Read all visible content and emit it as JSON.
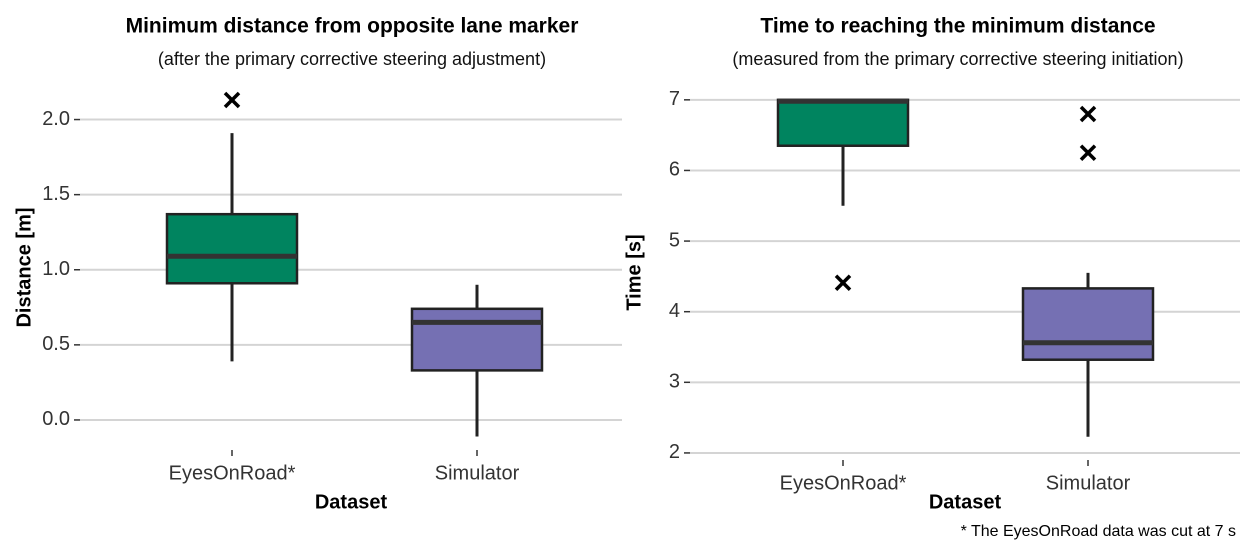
{
  "chart_data": [
    {
      "type": "box",
      "title": "Minimum distance from opposite lane marker",
      "subtitle": "(after the primary corrective steering adjustment)",
      "xlabel": "Dataset",
      "ylabel": "Distance [m]",
      "categories": [
        "EyesOnRoad*",
        "Simulator"
      ],
      "boxes": [
        {
          "color": "#00845f",
          "whisker_low": 0.39,
          "q1": 0.91,
          "median": 1.09,
          "q3": 1.37,
          "whisker_high": 1.91,
          "outliers": [
            2.13
          ]
        },
        {
          "color": "#7570b3",
          "whisker_low": -0.11,
          "q1": 0.33,
          "median": 0.65,
          "q3": 0.74,
          "whisker_high": 0.9,
          "outliers": []
        }
      ],
      "ylim": [
        -0.2,
        2.23
      ],
      "yticks": [
        {
          "value": 0,
          "label": "0.0"
        },
        {
          "value": 0.5,
          "label": "0.5"
        },
        {
          "value": 1,
          "label": "1.0"
        },
        {
          "value": 1.5,
          "label": "1.5"
        },
        {
          "value": 2,
          "label": "2.0"
        }
      ],
      "grid": true
    },
    {
      "type": "box",
      "title": "Time to reaching the minimum distance",
      "subtitle": "(measured from the primary corrective steering initiation)",
      "xlabel": "Dataset",
      "ylabel": "Time [s]",
      "categories": [
        "EyesOnRoad*",
        "Simulator"
      ],
      "boxes": [
        {
          "color": "#00845f",
          "whisker_low": 5.5,
          "q1": 6.35,
          "median": 6.98,
          "q3": 7.0,
          "whisker_high": 7.0,
          "outliers": [
            4.41
          ]
        },
        {
          "color": "#7570b3",
          "whisker_low": 2.23,
          "q1": 3.32,
          "median": 3.56,
          "q3": 4.33,
          "whisker_high": 4.55,
          "outliers": [
            6.8,
            6.25
          ]
        }
      ],
      "ylim": [
        1.9,
        7.21
      ],
      "yticks": [
        2,
        3,
        4,
        5,
        6,
        7
      ],
      "grid": true,
      "note": "* The EyesOnRoad data was cut at 7 s"
    }
  ]
}
